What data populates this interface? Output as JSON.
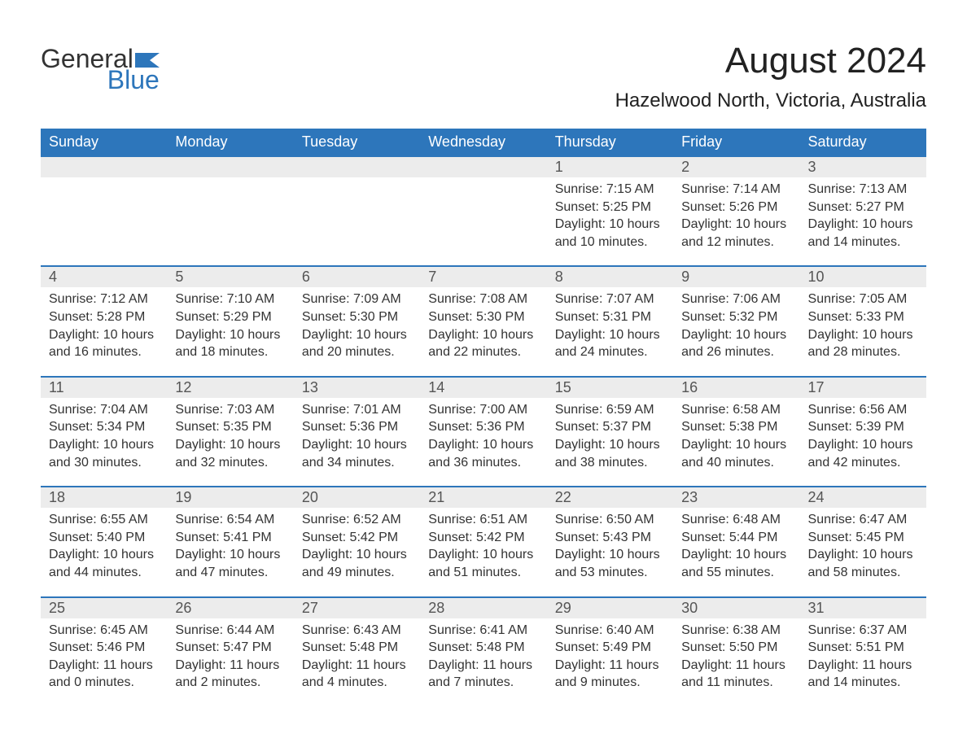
{
  "brand": {
    "part1": "General",
    "part2": "Blue",
    "color_primary": "#2d76bb",
    "color_text": "#333333"
  },
  "title": "August 2024",
  "location": "Hazelwood North, Victoria, Australia",
  "colors": {
    "header_bg": "#2d76bb",
    "header_text": "#ffffff",
    "daynum_bg": "#ececec",
    "row_border": "#2d76bb",
    "body_bg": "#ffffff",
    "text": "#333333"
  },
  "columns": [
    "Sunday",
    "Monday",
    "Tuesday",
    "Wednesday",
    "Thursday",
    "Friday",
    "Saturday"
  ],
  "labels": {
    "sunrise": "Sunrise",
    "sunset": "Sunset",
    "daylight": "Daylight"
  },
  "weeks": [
    [
      null,
      null,
      null,
      null,
      {
        "day": 1,
        "sunrise": "7:15 AM",
        "sunset": "5:25 PM",
        "daylight": "10 hours and 10 minutes."
      },
      {
        "day": 2,
        "sunrise": "7:14 AM",
        "sunset": "5:26 PM",
        "daylight": "10 hours and 12 minutes."
      },
      {
        "day": 3,
        "sunrise": "7:13 AM",
        "sunset": "5:27 PM",
        "daylight": "10 hours and 14 minutes."
      }
    ],
    [
      {
        "day": 4,
        "sunrise": "7:12 AM",
        "sunset": "5:28 PM",
        "daylight": "10 hours and 16 minutes."
      },
      {
        "day": 5,
        "sunrise": "7:10 AM",
        "sunset": "5:29 PM",
        "daylight": "10 hours and 18 minutes."
      },
      {
        "day": 6,
        "sunrise": "7:09 AM",
        "sunset": "5:30 PM",
        "daylight": "10 hours and 20 minutes."
      },
      {
        "day": 7,
        "sunrise": "7:08 AM",
        "sunset": "5:30 PM",
        "daylight": "10 hours and 22 minutes."
      },
      {
        "day": 8,
        "sunrise": "7:07 AM",
        "sunset": "5:31 PM",
        "daylight": "10 hours and 24 minutes."
      },
      {
        "day": 9,
        "sunrise": "7:06 AM",
        "sunset": "5:32 PM",
        "daylight": "10 hours and 26 minutes."
      },
      {
        "day": 10,
        "sunrise": "7:05 AM",
        "sunset": "5:33 PM",
        "daylight": "10 hours and 28 minutes."
      }
    ],
    [
      {
        "day": 11,
        "sunrise": "7:04 AM",
        "sunset": "5:34 PM",
        "daylight": "10 hours and 30 minutes."
      },
      {
        "day": 12,
        "sunrise": "7:03 AM",
        "sunset": "5:35 PM",
        "daylight": "10 hours and 32 minutes."
      },
      {
        "day": 13,
        "sunrise": "7:01 AM",
        "sunset": "5:36 PM",
        "daylight": "10 hours and 34 minutes."
      },
      {
        "day": 14,
        "sunrise": "7:00 AM",
        "sunset": "5:36 PM",
        "daylight": "10 hours and 36 minutes."
      },
      {
        "day": 15,
        "sunrise": "6:59 AM",
        "sunset": "5:37 PM",
        "daylight": "10 hours and 38 minutes."
      },
      {
        "day": 16,
        "sunrise": "6:58 AM",
        "sunset": "5:38 PM",
        "daylight": "10 hours and 40 minutes."
      },
      {
        "day": 17,
        "sunrise": "6:56 AM",
        "sunset": "5:39 PM",
        "daylight": "10 hours and 42 minutes."
      }
    ],
    [
      {
        "day": 18,
        "sunrise": "6:55 AM",
        "sunset": "5:40 PM",
        "daylight": "10 hours and 44 minutes."
      },
      {
        "day": 19,
        "sunrise": "6:54 AM",
        "sunset": "5:41 PM",
        "daylight": "10 hours and 47 minutes."
      },
      {
        "day": 20,
        "sunrise": "6:52 AM",
        "sunset": "5:42 PM",
        "daylight": "10 hours and 49 minutes."
      },
      {
        "day": 21,
        "sunrise": "6:51 AM",
        "sunset": "5:42 PM",
        "daylight": "10 hours and 51 minutes."
      },
      {
        "day": 22,
        "sunrise": "6:50 AM",
        "sunset": "5:43 PM",
        "daylight": "10 hours and 53 minutes."
      },
      {
        "day": 23,
        "sunrise": "6:48 AM",
        "sunset": "5:44 PM",
        "daylight": "10 hours and 55 minutes."
      },
      {
        "day": 24,
        "sunrise": "6:47 AM",
        "sunset": "5:45 PM",
        "daylight": "10 hours and 58 minutes."
      }
    ],
    [
      {
        "day": 25,
        "sunrise": "6:45 AM",
        "sunset": "5:46 PM",
        "daylight": "11 hours and 0 minutes."
      },
      {
        "day": 26,
        "sunrise": "6:44 AM",
        "sunset": "5:47 PM",
        "daylight": "11 hours and 2 minutes."
      },
      {
        "day": 27,
        "sunrise": "6:43 AM",
        "sunset": "5:48 PM",
        "daylight": "11 hours and 4 minutes."
      },
      {
        "day": 28,
        "sunrise": "6:41 AM",
        "sunset": "5:48 PM",
        "daylight": "11 hours and 7 minutes."
      },
      {
        "day": 29,
        "sunrise": "6:40 AM",
        "sunset": "5:49 PM",
        "daylight": "11 hours and 9 minutes."
      },
      {
        "day": 30,
        "sunrise": "6:38 AM",
        "sunset": "5:50 PM",
        "daylight": "11 hours and 11 minutes."
      },
      {
        "day": 31,
        "sunrise": "6:37 AM",
        "sunset": "5:51 PM",
        "daylight": "11 hours and 14 minutes."
      }
    ]
  ]
}
